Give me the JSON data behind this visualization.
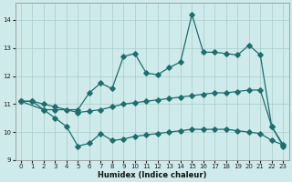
{
  "xlabel": "Humidex (Indice chaleur)",
  "bg_color": "#ceeaea",
  "line_color": "#1e6e6e",
  "grid_color": "#aacccc",
  "xlim": [
    -0.5,
    23.5
  ],
  "ylim": [
    9,
    14.6
  ],
  "yticks": [
    9,
    10,
    11,
    12,
    13,
    14
  ],
  "xticks": [
    0,
    1,
    2,
    3,
    4,
    5,
    6,
    7,
    8,
    9,
    10,
    11,
    12,
    13,
    14,
    15,
    16,
    17,
    18,
    19,
    20,
    21,
    22,
    23
  ],
  "line1_x": [
    0,
    1,
    2,
    3,
    5,
    6,
    7,
    8,
    9,
    10,
    11,
    12,
    13,
    14,
    15,
    16,
    17,
    18,
    19,
    20,
    21,
    22,
    23
  ],
  "line1_y": [
    11.1,
    11.1,
    10.8,
    10.8,
    10.8,
    11.4,
    11.75,
    11.55,
    12.7,
    12.8,
    12.1,
    12.05,
    12.3,
    12.5,
    14.2,
    12.85,
    12.85,
    12.8,
    12.75,
    13.1,
    12.75,
    10.2,
    9.5
  ],
  "line2_x": [
    0,
    1,
    2,
    3,
    4,
    5,
    6,
    7,
    8,
    9,
    10,
    11,
    12,
    13,
    14,
    15,
    16,
    17,
    18,
    19,
    20,
    21,
    22,
    23
  ],
  "line2_y": [
    11.1,
    11.1,
    11.0,
    10.9,
    10.8,
    10.7,
    10.75,
    10.8,
    10.9,
    11.0,
    11.05,
    11.1,
    11.15,
    11.2,
    11.25,
    11.3,
    11.35,
    11.4,
    11.4,
    11.45,
    11.5,
    11.5,
    10.2,
    9.55
  ],
  "line3_x": [
    0,
    2,
    3,
    4,
    5,
    6,
    7,
    8,
    9,
    10,
    11,
    12,
    13,
    14,
    15,
    16,
    17,
    18,
    19,
    20,
    21,
    22,
    23
  ],
  "line3_y": [
    11.1,
    10.8,
    10.5,
    10.2,
    9.5,
    9.6,
    9.95,
    9.7,
    9.75,
    9.85,
    9.9,
    9.95,
    10.0,
    10.05,
    10.1,
    10.1,
    10.1,
    10.1,
    10.05,
    10.0,
    9.95,
    9.7,
    9.55
  ]
}
